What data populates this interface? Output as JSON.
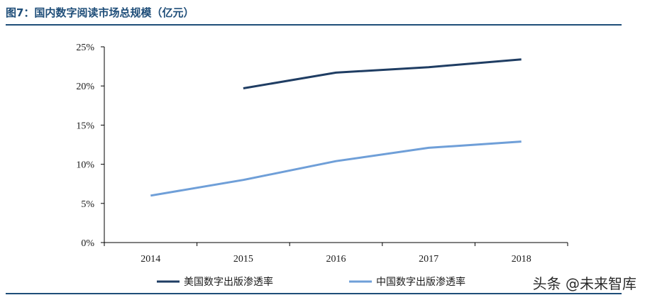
{
  "figure": {
    "title": "图7：国内数字阅读市场总规模（亿元）",
    "watermark": "头条 @未来智库"
  },
  "colors": {
    "title": "#1f4e79",
    "rule": "#1f4e79",
    "us_series": "#1f3d63",
    "cn_series": "#6f9fd8",
    "axis": "#000000"
  },
  "chart_data": {
    "type": "line",
    "x": [
      "2014",
      "2015",
      "2016",
      "2017",
      "2018"
    ],
    "ylim": [
      0,
      25
    ],
    "yticks": [
      0,
      5,
      10,
      15,
      20,
      25
    ],
    "ytick_labels": [
      "0%",
      "5%",
      "10%",
      "15%",
      "20%",
      "25%"
    ],
    "grid": false,
    "legend_position": "bottom",
    "series": [
      {
        "name": "美国数字出版渗透率",
        "values": [
          null,
          19.7,
          21.7,
          22.4,
          23.4
        ]
      },
      {
        "name": "中国数字出版渗透率",
        "values": [
          6.0,
          8.0,
          10.4,
          12.1,
          12.9
        ]
      }
    ]
  }
}
